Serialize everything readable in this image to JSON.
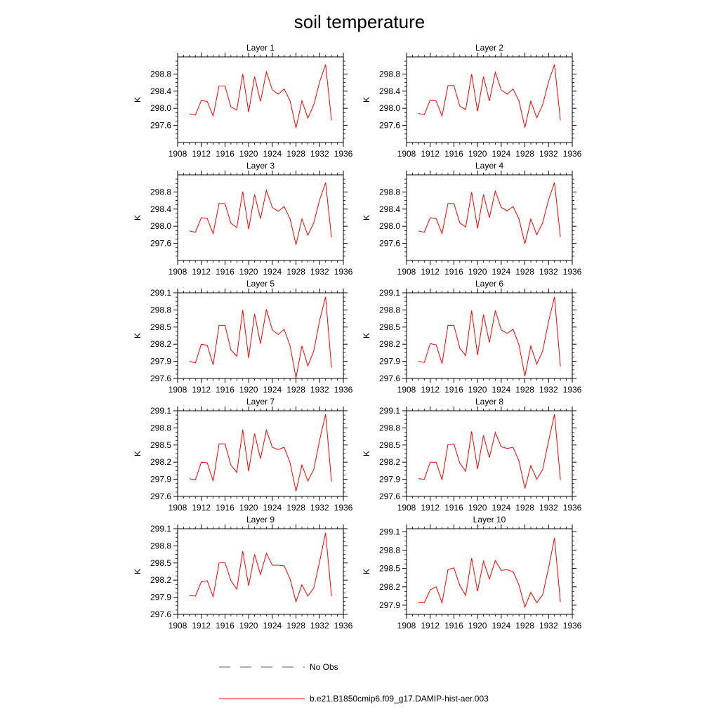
{
  "figure_title": "soil temperature",
  "chart_data": {
    "type": "line",
    "x": [
      1910,
      1911,
      1912,
      1913,
      1914,
      1915,
      1916,
      1917,
      1918,
      1919,
      1920,
      1921,
      1922,
      1923,
      1924,
      1925,
      1926,
      1927,
      1928,
      1929,
      1930,
      1931,
      1932,
      1933,
      1934
    ],
    "x_ticks": [
      "1908",
      "1912",
      "1916",
      "1920",
      "1924",
      "1928",
      "1932",
      "1936"
    ],
    "xlim": [
      1908,
      1936
    ],
    "ylabel": "K",
    "legend": {
      "placement": "bottom",
      "entries": [
        {
          "label": "No Obs",
          "color": "#5a5ab4",
          "style": "dashed"
        },
        {
          "label": "b.e21.B1850cmip6.f09_g17.DAMIP-hist-aer.003",
          "color": "#ff0000",
          "style": "solid"
        }
      ]
    },
    "series_color": "#ff0000",
    "panels": [
      {
        "title": "Layer 1",
        "ylim": [
          297.2,
          299.2
        ],
        "yticks": [
          "297.6",
          "298.0",
          "298.4",
          "298.8"
        ],
        "values": [
          297.87,
          297.84,
          298.18,
          298.16,
          297.82,
          298.52,
          298.52,
          298.03,
          297.96,
          298.8,
          297.91,
          298.74,
          298.16,
          298.85,
          298.43,
          298.33,
          298.45,
          298.17,
          297.54,
          298.18,
          297.77,
          298.08,
          298.62,
          299.02,
          297.72
        ]
      },
      {
        "title": "Layer 2",
        "ylim": [
          297.2,
          299.2
        ],
        "yticks": [
          "297.6",
          "298.0",
          "298.4",
          "298.8"
        ],
        "values": [
          297.88,
          297.85,
          298.19,
          298.17,
          297.82,
          298.53,
          298.53,
          298.05,
          297.97,
          298.8,
          297.93,
          298.74,
          298.17,
          298.84,
          298.43,
          298.33,
          298.45,
          298.17,
          297.55,
          298.17,
          297.78,
          298.08,
          298.62,
          299.02,
          297.72
        ]
      },
      {
        "title": "Layer 3",
        "ylim": [
          297.2,
          299.2
        ],
        "yticks": [
          "297.6",
          "298.0",
          "298.4",
          "298.8"
        ],
        "values": [
          297.89,
          297.86,
          298.2,
          298.18,
          297.83,
          298.53,
          298.53,
          298.07,
          297.97,
          298.81,
          297.93,
          298.74,
          298.18,
          298.84,
          298.44,
          298.35,
          298.46,
          298.17,
          297.57,
          298.17,
          297.79,
          298.08,
          298.62,
          299.02,
          297.74
        ]
      },
      {
        "title": "Layer 4",
        "ylim": [
          297.2,
          299.2
        ],
        "yticks": [
          "297.6",
          "298.0",
          "298.4",
          "298.8"
        ],
        "values": [
          297.89,
          297.86,
          298.2,
          298.18,
          297.83,
          298.53,
          298.53,
          298.08,
          297.98,
          298.8,
          297.95,
          298.74,
          298.2,
          298.82,
          298.44,
          298.36,
          298.46,
          298.17,
          297.59,
          298.17,
          297.8,
          298.08,
          298.62,
          299.02,
          297.75
        ]
      },
      {
        "title": "Layer 5",
        "ylim": [
          297.6,
          299.1
        ],
        "yticks": [
          "297.6",
          "297.9",
          "298.2",
          "298.5",
          "298.8",
          "299.1"
        ],
        "values": [
          297.9,
          297.87,
          298.2,
          298.18,
          297.84,
          298.53,
          298.53,
          298.1,
          297.99,
          298.8,
          297.96,
          298.73,
          298.21,
          298.81,
          298.45,
          298.37,
          298.46,
          298.17,
          297.61,
          298.17,
          297.82,
          298.08,
          298.62,
          299.03,
          297.79
        ]
      },
      {
        "title": "Layer 6",
        "ylim": [
          297.6,
          299.1
        ],
        "yticks": [
          "297.6",
          "297.9",
          "298.2",
          "298.5",
          "298.8",
          "299.1"
        ],
        "values": [
          297.9,
          297.88,
          298.21,
          298.19,
          297.86,
          298.53,
          298.53,
          298.13,
          298.0,
          298.79,
          298.01,
          298.72,
          298.23,
          298.79,
          298.45,
          298.39,
          298.46,
          298.19,
          297.64,
          298.17,
          297.85,
          298.08,
          298.6,
          299.03,
          297.81
        ]
      },
      {
        "title": "Layer 7",
        "ylim": [
          297.6,
          299.1
        ],
        "yticks": [
          "297.6",
          "297.9",
          "298.2",
          "298.5",
          "298.8",
          "299.1"
        ],
        "values": [
          297.91,
          297.89,
          298.2,
          298.19,
          297.87,
          298.52,
          298.52,
          298.15,
          298.02,
          298.77,
          298.04,
          298.7,
          298.26,
          298.76,
          298.46,
          298.42,
          298.46,
          298.19,
          297.69,
          298.15,
          297.87,
          298.07,
          298.59,
          299.04,
          297.86
        ]
      },
      {
        "title": "Layer 8",
        "ylim": [
          297.6,
          299.1
        ],
        "yticks": [
          "297.6",
          "297.9",
          "298.2",
          "298.5",
          "298.8",
          "299.1"
        ],
        "values": [
          297.91,
          297.9,
          298.2,
          298.2,
          297.89,
          298.51,
          298.52,
          298.18,
          298.04,
          298.74,
          298.08,
          298.67,
          298.28,
          298.72,
          298.47,
          298.44,
          298.46,
          298.22,
          297.74,
          298.14,
          297.9,
          298.07,
          298.57,
          299.04,
          297.89
        ]
      },
      {
        "title": "Layer 9",
        "ylim": [
          297.6,
          299.1
        ],
        "yticks": [
          "297.6",
          "297.9",
          "298.2",
          "298.5",
          "298.8",
          "299.1"
        ],
        "values": [
          297.93,
          297.92,
          298.17,
          298.19,
          297.91,
          298.5,
          298.51,
          298.19,
          298.04,
          298.71,
          298.1,
          298.65,
          298.3,
          298.67,
          298.46,
          298.46,
          298.45,
          298.22,
          297.82,
          298.12,
          297.92,
          298.06,
          298.53,
          299.03,
          297.92
        ]
      },
      {
        "title": "Layer 10",
        "ylim": [
          297.75,
          299.15
        ],
        "yticks": [
          "297.9",
          "298.2",
          "298.5",
          "298.8",
          "299.1"
        ],
        "values": [
          297.94,
          297.94,
          298.15,
          298.2,
          297.94,
          298.48,
          298.51,
          298.22,
          298.06,
          298.67,
          298.13,
          298.62,
          298.33,
          298.63,
          298.47,
          298.48,
          298.45,
          298.23,
          297.87,
          298.11,
          297.94,
          298.07,
          298.51,
          299.0,
          297.95
        ]
      }
    ]
  }
}
